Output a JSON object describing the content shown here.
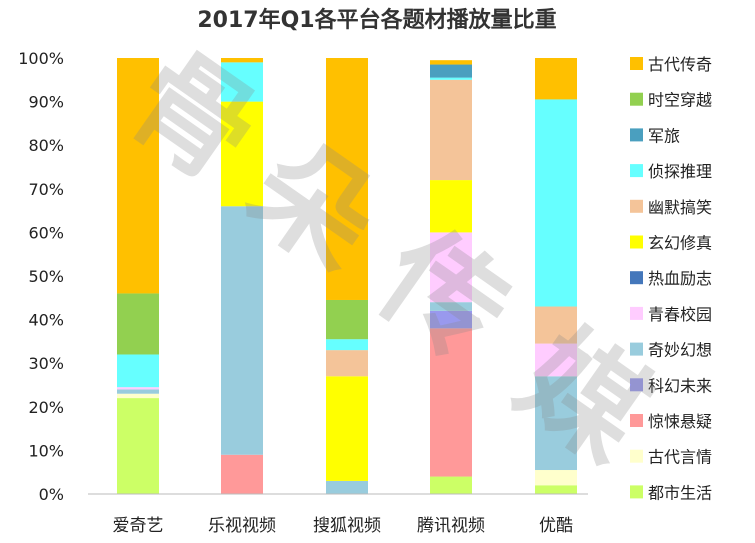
{
  "chart_data": {
    "type": "bar",
    "stacked": true,
    "title": "2017年Q1各平台各题材播放量比重",
    "categories": [
      "爱奇艺",
      "乐视视频",
      "搜狐视频",
      "腾讯视频",
      "优酷"
    ],
    "y_ticks": [
      "0%",
      "10%",
      "20%",
      "30%",
      "40%",
      "50%",
      "60%",
      "70%",
      "80%",
      "90%",
      "100%"
    ],
    "ylim": [
      0,
      100
    ],
    "grid": false,
    "legend_position": "right",
    "series": [
      {
        "name": "都市生活",
        "color": "#ccff66",
        "values": [
          22,
          0,
          0,
          4,
          2
        ]
      },
      {
        "name": "古代言情",
        "color": "#ffffcc",
        "values": [
          1,
          0,
          0,
          0,
          3.5
        ]
      },
      {
        "name": "惊悚悬疑",
        "color": "#ff9999",
        "values": [
          0,
          9,
          0,
          34,
          0
        ]
      },
      {
        "name": "科幻未来",
        "color": "#9999ee",
        "values": [
          0,
          0,
          0,
          4,
          0
        ]
      },
      {
        "name": "奇妙幻想",
        "color": "#99ccdd",
        "values": [
          1,
          57,
          3,
          2,
          21.5
        ]
      },
      {
        "name": "青春校园",
        "color": "#ffccff",
        "values": [
          0.5,
          0,
          0,
          16,
          7.5
        ]
      },
      {
        "name": "热血励志",
        "color": "#4477bb",
        "values": [
          0,
          0,
          0,
          0,
          0
        ]
      },
      {
        "name": "玄幻修真",
        "color": "#ffff00",
        "values": [
          0,
          24,
          24,
          12,
          0
        ]
      },
      {
        "name": "幽默搞笑",
        "color": "#f4c499",
        "values": [
          0,
          0,
          6,
          23,
          8.5
        ]
      },
      {
        "name": "侦探推理",
        "color": "#66ffff",
        "values": [
          7.5,
          9,
          2.5,
          0.5,
          47.5
        ]
      },
      {
        "name": "军旅",
        "color": "#4a9fbf",
        "values": [
          0,
          0,
          0,
          3,
          0
        ]
      },
      {
        "name": "时空穿越",
        "color": "#92d050",
        "values": [
          14,
          0,
          9,
          0,
          0
        ]
      },
      {
        "name": "古代传奇",
        "color": "#ffc000",
        "values": [
          54,
          1,
          55.5,
          1,
          9.5
        ]
      }
    ],
    "legend_order": [
      "古代传奇",
      "时空穿越",
      "军旅",
      "侦探推理",
      "幽默搞笑",
      "玄幻修真",
      "热血励志",
      "青春校园",
      "奇妙幻想",
      "科幻未来",
      "惊悚悬疑",
      "古代言情",
      "都市生活"
    ],
    "watermark": [
      "骨",
      "朵",
      "传",
      "媒"
    ]
  }
}
